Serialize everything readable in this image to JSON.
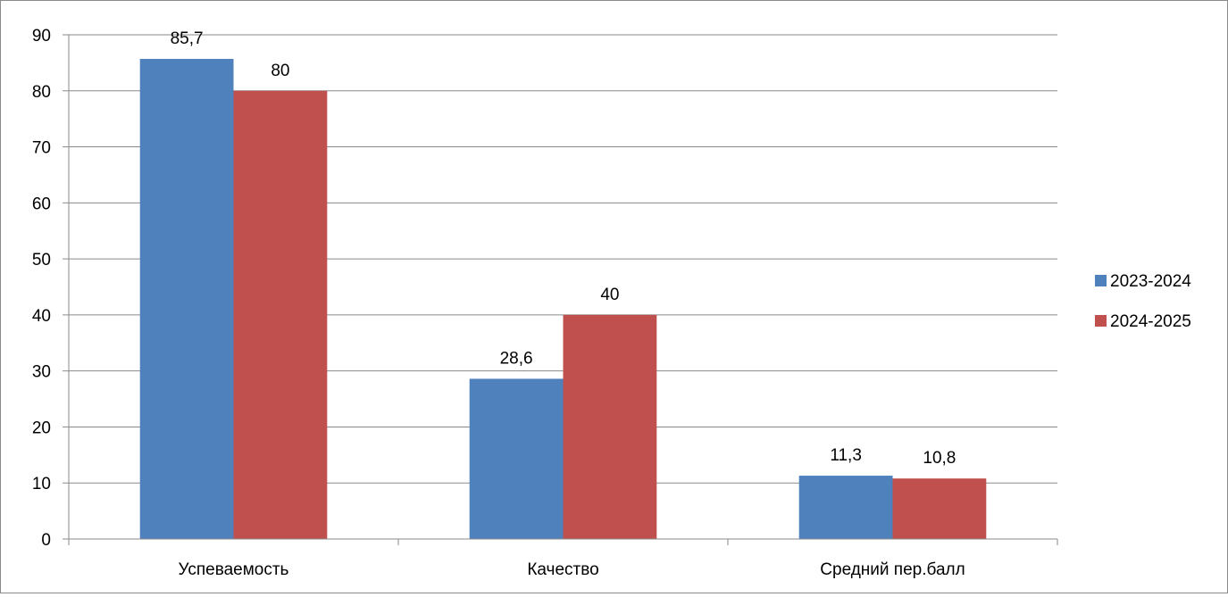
{
  "chart_data": {
    "type": "bar",
    "categories": [
      "Успеваемость",
      "Качество",
      "Средний пер.балл"
    ],
    "series": [
      {
        "name": "2023-2024",
        "values": [
          85.7,
          28.6,
          11.3
        ],
        "labels": [
          "85,7",
          "28,6",
          "11,3"
        ],
        "color": "#4F81BD"
      },
      {
        "name": "2024-2025",
        "values": [
          80,
          40,
          10.8
        ],
        "labels": [
          "80",
          "40",
          "10,8"
        ],
        "color": "#C0504D"
      }
    ],
    "ylim": [
      0,
      90
    ],
    "yticks": [
      "0",
      "10",
      "20",
      "30",
      "40",
      "50",
      "60",
      "70",
      "80",
      "90"
    ],
    "grid": true,
    "legend": "right",
    "title": "",
    "xlabel": "",
    "ylabel": ""
  }
}
